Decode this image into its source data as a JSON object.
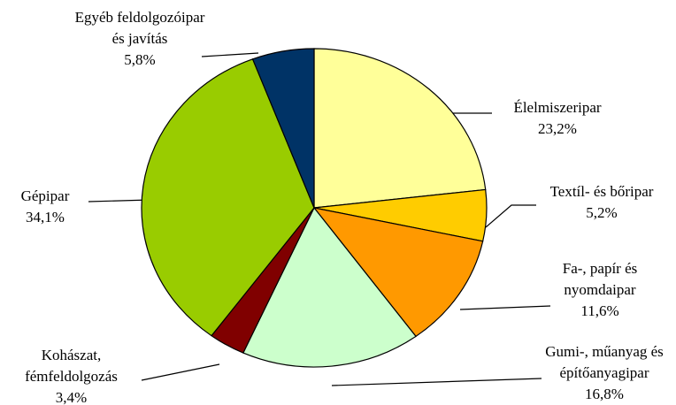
{
  "chart_data": {
    "type": "pie",
    "categories": [
      "Élelmiszeripar",
      "Textíl- és bőripar",
      "Fa-, papír és nyomdaipar",
      "Gumi-, műanyag és építőanyagipar",
      "Kohászat, fémfeldolgozás",
      "Gépipar",
      "Egyéb feldolgozóipar és javítás"
    ],
    "values": [
      23.2,
      5.2,
      11.6,
      16.8,
      3.4,
      34.1,
      5.8
    ],
    "value_labels": [
      "23,2%",
      "5,2%",
      "11,6%",
      "16,8%",
      "3,4%",
      "34,1%",
      "5,8%"
    ],
    "colors": [
      "#ffff99",
      "#ffcc00",
      "#ff9900",
      "#ccffcc",
      "#800000",
      "#99cc00",
      "#003366"
    ]
  }
}
